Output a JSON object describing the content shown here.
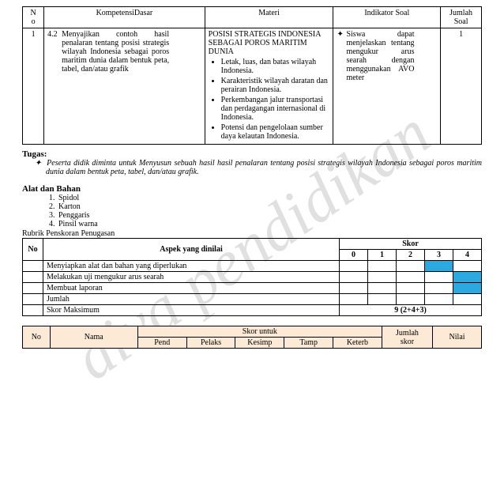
{
  "watermark": "diva pendidikan",
  "mainTable": {
    "headers": {
      "no": "N\no",
      "kd": "KompetensiDasar",
      "materi": "Materi",
      "indikator": "Indikator Soal",
      "jumlah": "Jumlah\nSoal"
    },
    "row": {
      "no": "1",
      "kd_num": "4.2",
      "kd_text": "Menyajikan contoh hasil penalaran tentang posisi strategis wilayah Indonesia sebagai poros maritim dunia dalam bentuk peta, tabel, dan/atau grafik",
      "materi_title": "POSISI STRATEGIS INDONESIA SEBAGAI POROS MARITIM DUNIA",
      "materi_items": [
        "Letak, luas, dan batas wilayah Indonesia.",
        "Karakteristik wilayah daratan dan perairan Indonesia.",
        "Perkembangan jalur transportasi dan perdagangan internasional di Indonesia.",
        "Potensi dan pengelolaan sumber daya kelautan Indonesia."
      ],
      "indikator": "Siswa dapat menjelaskan tentang mengukur arus searah dengan menggunakan AVO meter",
      "jumlah": "1"
    }
  },
  "tugas": {
    "title": "Tugas:",
    "item": "Peserta didik diminta untuk Menyusun sebuah hasil hasil penalaran tentang posisi strategis wilayah Indonesia sebagai poros maritim dunia dalam bentuk peta, tabel, dan/atau grafik."
  },
  "alat": {
    "title": "Alat dan Bahan",
    "items": [
      "Spidol",
      "Karton",
      "Penggaris",
      "Pinsil warna"
    ]
  },
  "rubrik": {
    "label": "Rubrik Penskoran Penugasan",
    "headers": {
      "no": "No",
      "aspek": "Aspek yang dinilai",
      "skor": "Skor",
      "s0": "0",
      "s1": "1",
      "s2": "2",
      "s3": "3",
      "s4": "4"
    },
    "rows": [
      {
        "aspek": "Menyiapkan alat dan bahan yang diperlukan",
        "blue": [
          3
        ]
      },
      {
        "aspek": "Melakukan uji mengukur arus searah",
        "blue": [
          4
        ]
      },
      {
        "aspek": "Membuat laporan",
        "blue": [
          4
        ]
      }
    ],
    "jumlah": "Jumlah",
    "maks_label": "Skor Maksimum",
    "maks_val": "9 (2+4+3)"
  },
  "skorUntuk": {
    "headers": {
      "no": "No",
      "nama": "Nama",
      "skor_untuk": "Skor untuk",
      "pend": "Pend",
      "pelaks": "Pelaks",
      "kesimp": "Kesimp",
      "tamp": "Tamp",
      "keterb": "Keterb",
      "jumlah": "Jumlah\nskor",
      "nilai": "Nilai"
    }
  }
}
